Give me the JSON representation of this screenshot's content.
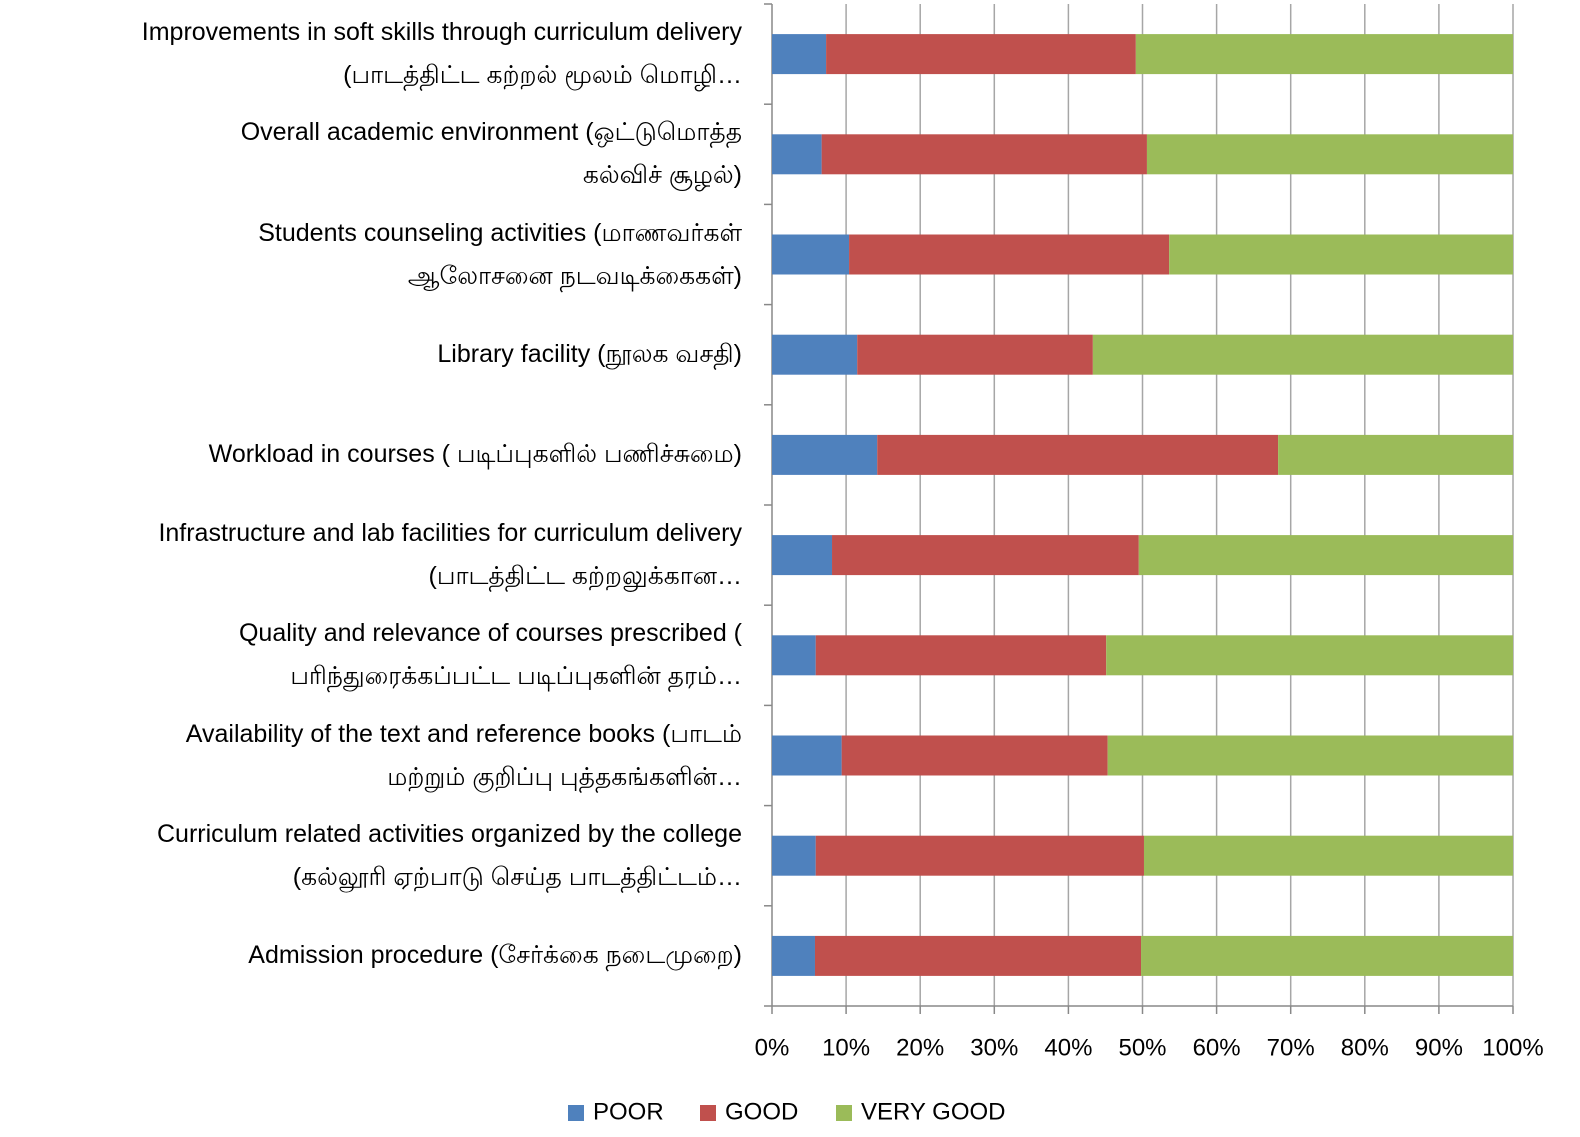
{
  "chart_data": {
    "type": "stacked_barh",
    "categories": [
      "Improvements in soft skills through curriculum delivery\n(பாடத்திட்ட கற்றல் மூலம் மொழி…",
      "Overall academic environment (ஒட்டுமொத்த\nகல்விச் சூழல்)",
      "Students counseling activities (மாணவர்கள்\nஆலோசனை நடவடிக்கைகள்)",
      "Library facility (நூலக வசதி)",
      "Workload in courses ( படிப்புகளில் பணிச்சுமை)",
      "Infrastructure and lab facilities for curriculum delivery\n(பாடத்திட்ட கற்றலுக்கான…",
      "Quality and relevance of courses prescribed (\nபரிந்துரைக்கப்பட்ட படிப்புகளின் தரம்…",
      "Availability of the text and reference books (பாடம்\nமற்றும் குறிப்பு புத்தகங்களின்…",
      "Curriculum related activities organized by the college\n(கல்லூரி ஏற்பாடு செய்த பாடத்திட்டம்…",
      "Admission procedure (சேர்க்கை நடைமுறை)"
    ],
    "series": [
      {
        "name": "POOR",
        "color": "#4f81bd",
        "values": [
          7.3,
          6.7,
          10.4,
          11.5,
          14.2,
          8.1,
          5.9,
          9.4,
          5.9,
          5.8
        ]
      },
      {
        "name": "GOOD",
        "color": "#c0504d",
        "values": [
          41.8,
          43.9,
          43.2,
          31.8,
          54.1,
          41.4,
          39.2,
          35.9,
          44.3,
          44.0
        ]
      },
      {
        "name": "VERY GOOD",
        "color": "#9bbb59",
        "values": [
          50.9,
          49.4,
          46.4,
          56.7,
          31.7,
          50.5,
          54.9,
          54.7,
          49.8,
          50.2
        ]
      }
    ],
    "xlim": [
      0,
      100
    ],
    "xticks": [
      {
        "value": 0,
        "label": "0%"
      },
      {
        "value": 10,
        "label": "10%"
      },
      {
        "value": 20,
        "label": "20%"
      },
      {
        "value": 30,
        "label": "30%"
      },
      {
        "value": 40,
        "label": "40%"
      },
      {
        "value": 50,
        "label": "50%"
      },
      {
        "value": 60,
        "label": "60%"
      },
      {
        "value": 70,
        "label": "70%"
      },
      {
        "value": 80,
        "label": "80%"
      },
      {
        "value": 90,
        "label": "90%"
      },
      {
        "value": 100,
        "label": "100%"
      }
    ],
    "grid": true,
    "legend": "bottom"
  }
}
